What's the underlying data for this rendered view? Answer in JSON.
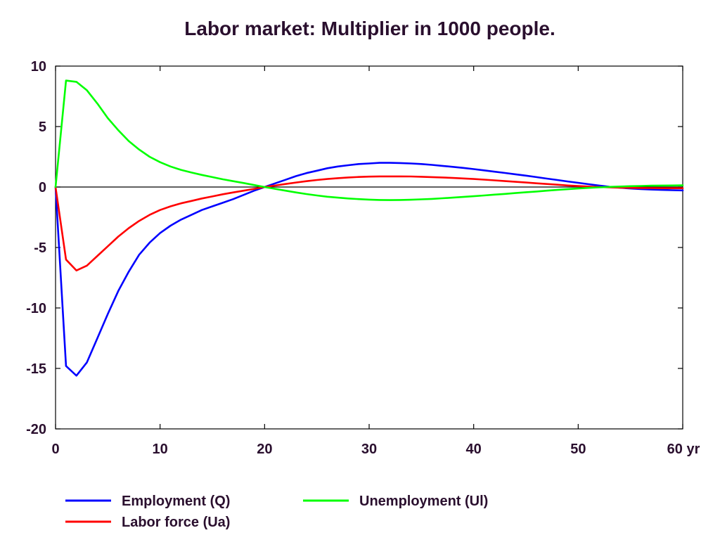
{
  "chart_data": {
    "type": "line",
    "title": "Labor market: Multiplier in 1000 people.",
    "x_unit_label": "yr",
    "xlim": [
      0,
      60
    ],
    "ylim": [
      -20,
      10
    ],
    "x_ticks": [
      0,
      10,
      20,
      30,
      40,
      50,
      60
    ],
    "y_ticks": [
      10,
      5,
      0,
      -5,
      -10,
      -15,
      -20
    ],
    "grid": false,
    "zero_line": true,
    "legend_placement": "bottom",
    "x": [
      0,
      1,
      2,
      3,
      4,
      5,
      6,
      7,
      8,
      9,
      10,
      11,
      12,
      13,
      14,
      15,
      16,
      17,
      18,
      19,
      20,
      21,
      22,
      23,
      24,
      25,
      26,
      27,
      28,
      29,
      30,
      31,
      32,
      33,
      34,
      35,
      36,
      37,
      38,
      39,
      40,
      41,
      42,
      43,
      44,
      45,
      46,
      47,
      48,
      49,
      50,
      51,
      52,
      53,
      54,
      55,
      56,
      57,
      58,
      59,
      60
    ],
    "series": [
      {
        "name": "Employment (Q)",
        "color": "#0000ff",
        "values": [
          0,
          -14.8,
          -15.6,
          -14.5,
          -12.5,
          -10.5,
          -8.6,
          -7,
          -5.6,
          -4.6,
          -3.8,
          -3.2,
          -2.7,
          -2.3,
          -1.9,
          -1.6,
          -1.3,
          -1,
          -0.65,
          -0.3,
          0,
          0.3,
          0.6,
          0.9,
          1.15,
          1.35,
          1.55,
          1.7,
          1.8,
          1.9,
          1.95,
          2,
          2,
          1.98,
          1.95,
          1.9,
          1.83,
          1.75,
          1.67,
          1.58,
          1.48,
          1.38,
          1.27,
          1.16,
          1.05,
          0.94,
          0.82,
          0.7,
          0.58,
          0.46,
          0.35,
          0.23,
          0.12,
          0.02,
          -0.06,
          -0.12,
          -0.17,
          -0.21,
          -0.24,
          -0.26,
          -0.28
        ]
      },
      {
        "name": "Labor force (Ua)",
        "color": "#ff0000",
        "values": [
          0,
          -6,
          -6.9,
          -6.5,
          -5.7,
          -4.9,
          -4.1,
          -3.4,
          -2.8,
          -2.3,
          -1.9,
          -1.6,
          -1.35,
          -1.15,
          -0.95,
          -0.78,
          -0.6,
          -0.45,
          -0.3,
          -0.15,
          0,
          0.12,
          0.25,
          0.37,
          0.48,
          0.58,
          0.66,
          0.73,
          0.79,
          0.83,
          0.86,
          0.88,
          0.88,
          0.88,
          0.87,
          0.85,
          0.82,
          0.79,
          0.75,
          0.71,
          0.66,
          0.61,
          0.55,
          0.49,
          0.43,
          0.37,
          0.31,
          0.25,
          0.19,
          0.13,
          0.08,
          0.04,
          0,
          -0.03,
          -0.05,
          -0.07,
          -0.08,
          -0.09,
          -0.1,
          -0.1,
          -0.1
        ]
      },
      {
        "name": "Unemployment (Ul)",
        "color": "#00ff00",
        "values": [
          0,
          8.8,
          8.7,
          8,
          6.9,
          5.7,
          4.7,
          3.8,
          3.1,
          2.5,
          2.05,
          1.7,
          1.42,
          1.2,
          1,
          0.82,
          0.64,
          0.48,
          0.33,
          0.16,
          0,
          -0.15,
          -0.3,
          -0.45,
          -0.58,
          -0.7,
          -0.8,
          -0.88,
          -0.95,
          -1,
          -1.04,
          -1.07,
          -1.08,
          -1.07,
          -1.05,
          -1.02,
          -0.98,
          -0.93,
          -0.88,
          -0.82,
          -0.76,
          -0.7,
          -0.63,
          -0.57,
          -0.5,
          -0.43,
          -0.37,
          -0.3,
          -0.24,
          -0.18,
          -0.12,
          -0.07,
          -0.03,
          0.01,
          0.04,
          0.07,
          0.09,
          0.11,
          0.12,
          0.13,
          0.14
        ]
      }
    ]
  }
}
